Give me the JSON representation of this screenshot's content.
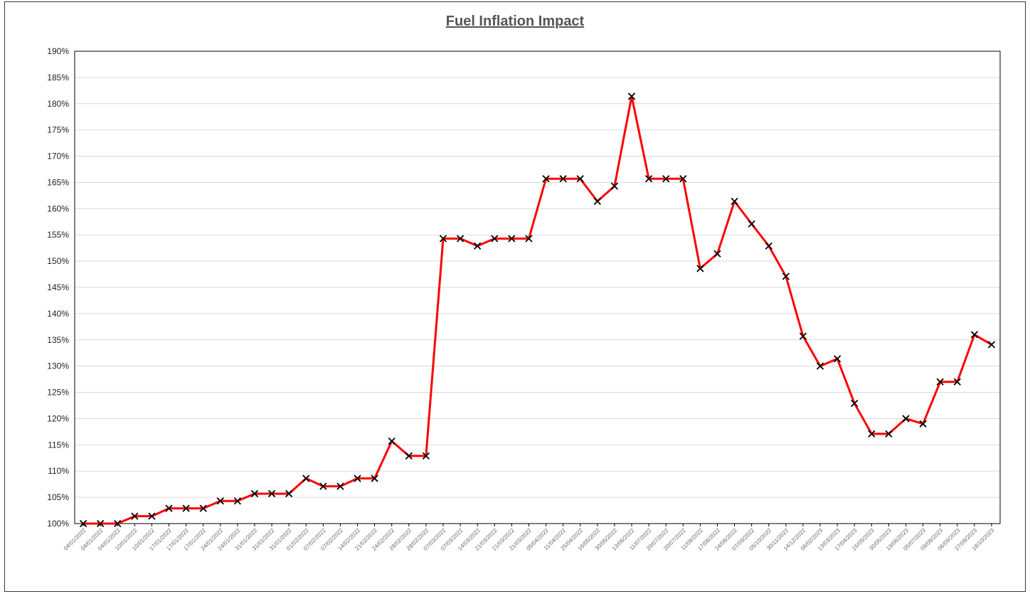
{
  "chart_data": {
    "type": "line",
    "title": "Fuel Inflation Impact",
    "xlabel": "",
    "ylabel": "",
    "ylim": [
      100,
      190
    ],
    "ytick_step": 5,
    "ytick_format": "percent",
    "grid": true,
    "legend": "none",
    "line_color": "#ff0000",
    "marker": "x",
    "marker_color": "#000000",
    "x": [
      "04/01/2022",
      "04/01/2022",
      "04/01/2022",
      "10/01/2022",
      "10/01/2022",
      "17/01/2022",
      "17/01/2022",
      "17/01/2022",
      "24/01/2022",
      "24/01/2022",
      "31/01/2022",
      "31/01/2022",
      "31/01/2022",
      "01/02/2022",
      "07/02/2022",
      "07/02/2022",
      "14/02/2022",
      "21/02/2022",
      "24/02/2022",
      "28/02/2022",
      "28/02/2022",
      "07/03/2022",
      "07/03/2022",
      "14/03/2022",
      "21/03/2022",
      "21/03/2022",
      "21/03/2022",
      "05/04/2022",
      "11/04/2022",
      "25/04/2022",
      "16/05/2022",
      "30/05/2022",
      "13/06/2022",
      "11/07/2022",
      "20/07/2022",
      "20/07/2022",
      "11/08/2022",
      "17/08/2022",
      "24/08/2022",
      "07/09/2022",
      "05/10/2022",
      "30/11/2022",
      "14/12/2022",
      "06/02/2023",
      "13/03/2023",
      "17/04/2023",
      "15/05/2023",
      "30/05/2023",
      "19/06/2023",
      "05/07/2023",
      "09/08/2023",
      "06/09/2023",
      "27/09/2023",
      "18/10/2023"
    ],
    "series": [
      {
        "values": [
          100,
          100,
          100,
          101.4,
          101.4,
          102.9,
          102.9,
          102.9,
          104.3,
          104.3,
          105.7,
          105.7,
          105.7,
          108.6,
          107.1,
          107.1,
          108.6,
          108.6,
          115.7,
          112.9,
          112.9,
          154.3,
          154.3,
          152.9,
          154.3,
          154.3,
          154.3,
          165.7,
          165.7,
          165.7,
          161.4,
          164.3,
          181.4,
          165.7,
          165.7,
          165.7,
          148.6,
          151.4,
          161.4,
          157.1,
          152.9,
          147.1,
          135.7,
          130,
          131.4,
          122.9,
          117.1,
          117.1,
          120,
          119,
          127,
          127,
          136,
          134.1
        ]
      }
    ]
  }
}
